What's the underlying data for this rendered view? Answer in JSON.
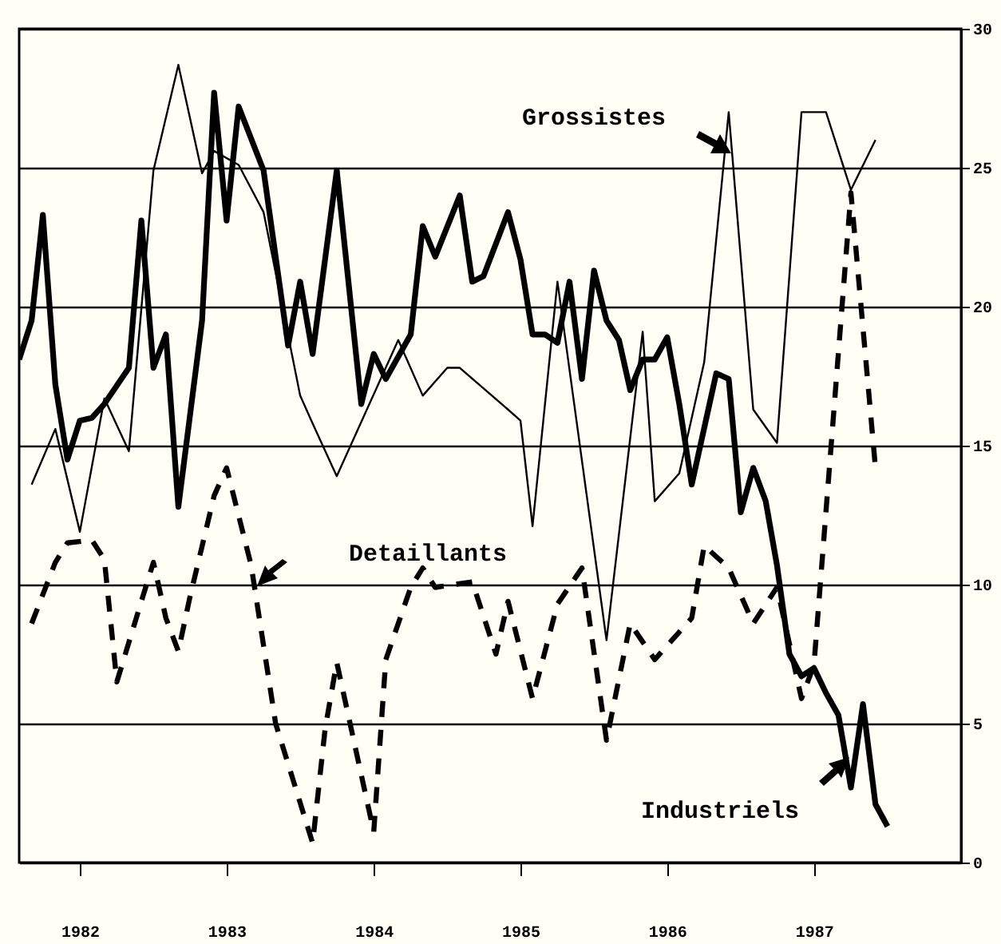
{
  "chart_data": {
    "type": "line",
    "xlim": [
      "1982-01",
      "1988-06"
    ],
    "xticks": [
      {
        "value": "1982-06",
        "label": "1982"
      },
      {
        "value": "1983-06",
        "label": "1983"
      },
      {
        "value": "1984-06",
        "label": "1984"
      },
      {
        "value": "1985-06",
        "label": "1985"
      },
      {
        "value": "1986-06",
        "label": "1986"
      },
      {
        "value": "1987-06",
        "label": "1987"
      }
    ],
    "ylim": [
      0,
      30
    ],
    "yticks": [
      0,
      5,
      10,
      15,
      20,
      25,
      30
    ],
    "grid": "y",
    "legend": false,
    "series": [
      {
        "name": "Grossistes",
        "color": "#000000",
        "line_style": "solid",
        "x": [
          "1982-02",
          "1982-04",
          "1982-06",
          "1982-08",
          "1982-10",
          "1982-12",
          "1983-02",
          "1983-04",
          "1983-05",
          "1983-07",
          "1983-09",
          "1983-12",
          "1984-01",
          "1984-03",
          "1984-08",
          "1984-10",
          "1984-12",
          "1985-01",
          "1985-05",
          "1985-06",
          "1985-07",
          "1985-09",
          "1986-01",
          "1986-04",
          "1986-05",
          "1986-07",
          "1986-09",
          "1986-11",
          "1987-01",
          "1987-03",
          "1987-05",
          "1987-07",
          "1987-09",
          "1987-11"
        ],
        "values": [
          13.6,
          15.6,
          11.9,
          16.7,
          14.8,
          24.9,
          28.7,
          24.8,
          25.6,
          25.1,
          23.4,
          16.8,
          15.8,
          13.9,
          18.8,
          16.8,
          17.8,
          17.8,
          16.3,
          15.9,
          12.1,
          20.9,
          8.0,
          19.1,
          13.0,
          14.0,
          18.0,
          27.0,
          16.3,
          15.1,
          27.0,
          27.0,
          24.2,
          26.0
        ]
      },
      {
        "name": "Detaillants",
        "color": "#000000",
        "line_style": "dashed",
        "x": [
          "1982-02",
          "1982-04",
          "1982-05",
          "1982-07",
          "1982-08",
          "1982-09",
          "1982-11",
          "1982-12",
          "1983-01",
          "1983-02",
          "1983-03",
          "1983-05",
          "1983-06",
          "1983-08",
          "1983-10",
          "1984-01",
          "1984-02",
          "1984-03",
          "1984-06",
          "1984-07",
          "1984-09",
          "1984-10",
          "1984-11",
          "1985-02",
          "1985-04",
          "1985-05",
          "1985-07",
          "1985-09",
          "1985-11",
          "1986-01",
          "1986-03",
          "1986-05",
          "1986-08",
          "1986-09",
          "1986-11",
          "1987-01",
          "1987-03",
          "1987-05",
          "1987-06",
          "1987-09",
          "1987-11"
        ],
        "values": [
          8.6,
          10.8,
          11.5,
          11.6,
          10.9,
          6.5,
          9.4,
          10.8,
          8.8,
          7.6,
          9.5,
          13.2,
          14.2,
          10.7,
          5.0,
          0.7,
          4.8,
          7.2,
          1.1,
          7.3,
          9.9,
          10.6,
          9.9,
          10.1,
          7.5,
          9.4,
          5.9,
          9.3,
          10.6,
          4.4,
          8.6,
          7.3,
          8.8,
          11.4,
          10.6,
          8.6,
          9.9,
          5.9,
          7.1,
          24.1,
          14.2
        ]
      },
      {
        "name": "Industriels",
        "color": "#000000",
        "line_style": "solid",
        "x": [
          "1982-01",
          "1982-02",
          "1982-03",
          "1982-04",
          "1982-05",
          "1982-06",
          "1982-07",
          "1982-08",
          "1982-10",
          "1982-11",
          "1982-12",
          "1983-01",
          "1983-02",
          "1983-04",
          "1983-05",
          "1983-06",
          "1983-07",
          "1983-09",
          "1983-11",
          "1983-12",
          "1984-01",
          "1984-03",
          "1984-05",
          "1984-06",
          "1984-07",
          "1984-09",
          "1984-10",
          "1984-11",
          "1985-01",
          "1985-02",
          "1985-03",
          "1985-05",
          "1985-06",
          "1985-07",
          "1985-08",
          "1985-09",
          "1985-10",
          "1985-11",
          "1985-12",
          "1986-01",
          "1986-02",
          "1986-03",
          "1986-04",
          "1986-05",
          "1986-06",
          "1986-07",
          "1986-08",
          "1986-10",
          "1986-11",
          "1986-12",
          "1987-01",
          "1987-02",
          "1987-03",
          "1987-04",
          "1987-05",
          "1987-06",
          "1987-07",
          "1987-08",
          "1987-09",
          "1987-10",
          "1987-11",
          "1987-12"
        ],
        "values": [
          18.1,
          19.5,
          23.3,
          17.2,
          14.5,
          15.9,
          16.0,
          16.5,
          17.8,
          23.1,
          17.8,
          19.0,
          12.8,
          19.5,
          27.7,
          23.1,
          27.2,
          24.9,
          18.6,
          20.9,
          18.3,
          24.9,
          16.5,
          18.3,
          17.4,
          19.0,
          22.9,
          21.8,
          24.0,
          20.9,
          21.1,
          23.4,
          21.7,
          19.0,
          19.0,
          18.7,
          20.9,
          17.4,
          21.3,
          19.5,
          18.8,
          17.0,
          18.1,
          18.1,
          18.9,
          16.5,
          13.6,
          17.6,
          17.4,
          12.6,
          14.2,
          13.0,
          10.7,
          7.5,
          6.7,
          7.0,
          6.1,
          5.3,
          2.7,
          5.7,
          2.1,
          1.3
        ]
      }
    ]
  }
}
